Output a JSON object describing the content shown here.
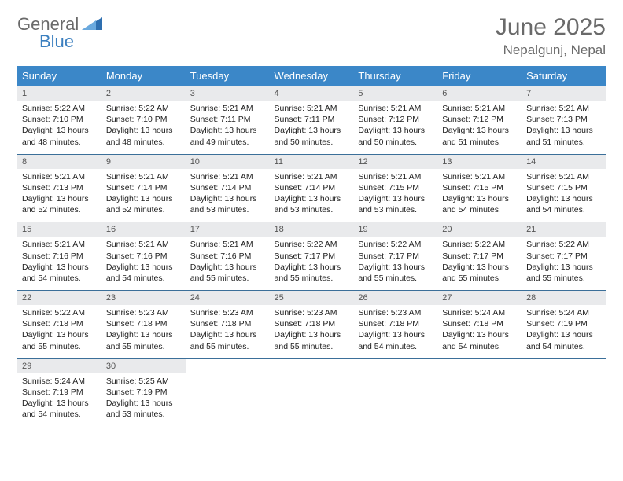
{
  "brand": {
    "part1": "General",
    "part2": "Blue"
  },
  "title": "June 2025",
  "location": "Nepalgunj, Nepal",
  "dow": [
    "Sunday",
    "Monday",
    "Tuesday",
    "Wednesday",
    "Thursday",
    "Friday",
    "Saturday"
  ],
  "colors": {
    "header_bg": "#3b87c8",
    "header_text": "#ffffff",
    "daynum_bg": "#e9eaec",
    "rule": "#3b6f99",
    "title_color": "#6a6a6a",
    "brand_blue": "#3b7fbf"
  },
  "weeks": [
    [
      {
        "n": "1",
        "sr": "5:22 AM",
        "ss": "7:10 PM",
        "dl": "13 hours and 48 minutes."
      },
      {
        "n": "2",
        "sr": "5:22 AM",
        "ss": "7:10 PM",
        "dl": "13 hours and 48 minutes."
      },
      {
        "n": "3",
        "sr": "5:21 AM",
        "ss": "7:11 PM",
        "dl": "13 hours and 49 minutes."
      },
      {
        "n": "4",
        "sr": "5:21 AM",
        "ss": "7:11 PM",
        "dl": "13 hours and 50 minutes."
      },
      {
        "n": "5",
        "sr": "5:21 AM",
        "ss": "7:12 PM",
        "dl": "13 hours and 50 minutes."
      },
      {
        "n": "6",
        "sr": "5:21 AM",
        "ss": "7:12 PM",
        "dl": "13 hours and 51 minutes."
      },
      {
        "n": "7",
        "sr": "5:21 AM",
        "ss": "7:13 PM",
        "dl": "13 hours and 51 minutes."
      }
    ],
    [
      {
        "n": "8",
        "sr": "5:21 AM",
        "ss": "7:13 PM",
        "dl": "13 hours and 52 minutes."
      },
      {
        "n": "9",
        "sr": "5:21 AM",
        "ss": "7:14 PM",
        "dl": "13 hours and 52 minutes."
      },
      {
        "n": "10",
        "sr": "5:21 AM",
        "ss": "7:14 PM",
        "dl": "13 hours and 53 minutes."
      },
      {
        "n": "11",
        "sr": "5:21 AM",
        "ss": "7:14 PM",
        "dl": "13 hours and 53 minutes."
      },
      {
        "n": "12",
        "sr": "5:21 AM",
        "ss": "7:15 PM",
        "dl": "13 hours and 53 minutes."
      },
      {
        "n": "13",
        "sr": "5:21 AM",
        "ss": "7:15 PM",
        "dl": "13 hours and 54 minutes."
      },
      {
        "n": "14",
        "sr": "5:21 AM",
        "ss": "7:15 PM",
        "dl": "13 hours and 54 minutes."
      }
    ],
    [
      {
        "n": "15",
        "sr": "5:21 AM",
        "ss": "7:16 PM",
        "dl": "13 hours and 54 minutes."
      },
      {
        "n": "16",
        "sr": "5:21 AM",
        "ss": "7:16 PM",
        "dl": "13 hours and 54 minutes."
      },
      {
        "n": "17",
        "sr": "5:21 AM",
        "ss": "7:16 PM",
        "dl": "13 hours and 55 minutes."
      },
      {
        "n": "18",
        "sr": "5:22 AM",
        "ss": "7:17 PM",
        "dl": "13 hours and 55 minutes."
      },
      {
        "n": "19",
        "sr": "5:22 AM",
        "ss": "7:17 PM",
        "dl": "13 hours and 55 minutes."
      },
      {
        "n": "20",
        "sr": "5:22 AM",
        "ss": "7:17 PM",
        "dl": "13 hours and 55 minutes."
      },
      {
        "n": "21",
        "sr": "5:22 AM",
        "ss": "7:17 PM",
        "dl": "13 hours and 55 minutes."
      }
    ],
    [
      {
        "n": "22",
        "sr": "5:22 AM",
        "ss": "7:18 PM",
        "dl": "13 hours and 55 minutes."
      },
      {
        "n": "23",
        "sr": "5:23 AM",
        "ss": "7:18 PM",
        "dl": "13 hours and 55 minutes."
      },
      {
        "n": "24",
        "sr": "5:23 AM",
        "ss": "7:18 PM",
        "dl": "13 hours and 55 minutes."
      },
      {
        "n": "25",
        "sr": "5:23 AM",
        "ss": "7:18 PM",
        "dl": "13 hours and 55 minutes."
      },
      {
        "n": "26",
        "sr": "5:23 AM",
        "ss": "7:18 PM",
        "dl": "13 hours and 54 minutes."
      },
      {
        "n": "27",
        "sr": "5:24 AM",
        "ss": "7:18 PM",
        "dl": "13 hours and 54 minutes."
      },
      {
        "n": "28",
        "sr": "5:24 AM",
        "ss": "7:19 PM",
        "dl": "13 hours and 54 minutes."
      }
    ],
    [
      {
        "n": "29",
        "sr": "5:24 AM",
        "ss": "7:19 PM",
        "dl": "13 hours and 54 minutes."
      },
      {
        "n": "30",
        "sr": "5:25 AM",
        "ss": "7:19 PM",
        "dl": "13 hours and 53 minutes."
      },
      null,
      null,
      null,
      null,
      null
    ]
  ],
  "labels": {
    "sunrise": "Sunrise: ",
    "sunset": "Sunset: ",
    "daylight": "Daylight: "
  }
}
